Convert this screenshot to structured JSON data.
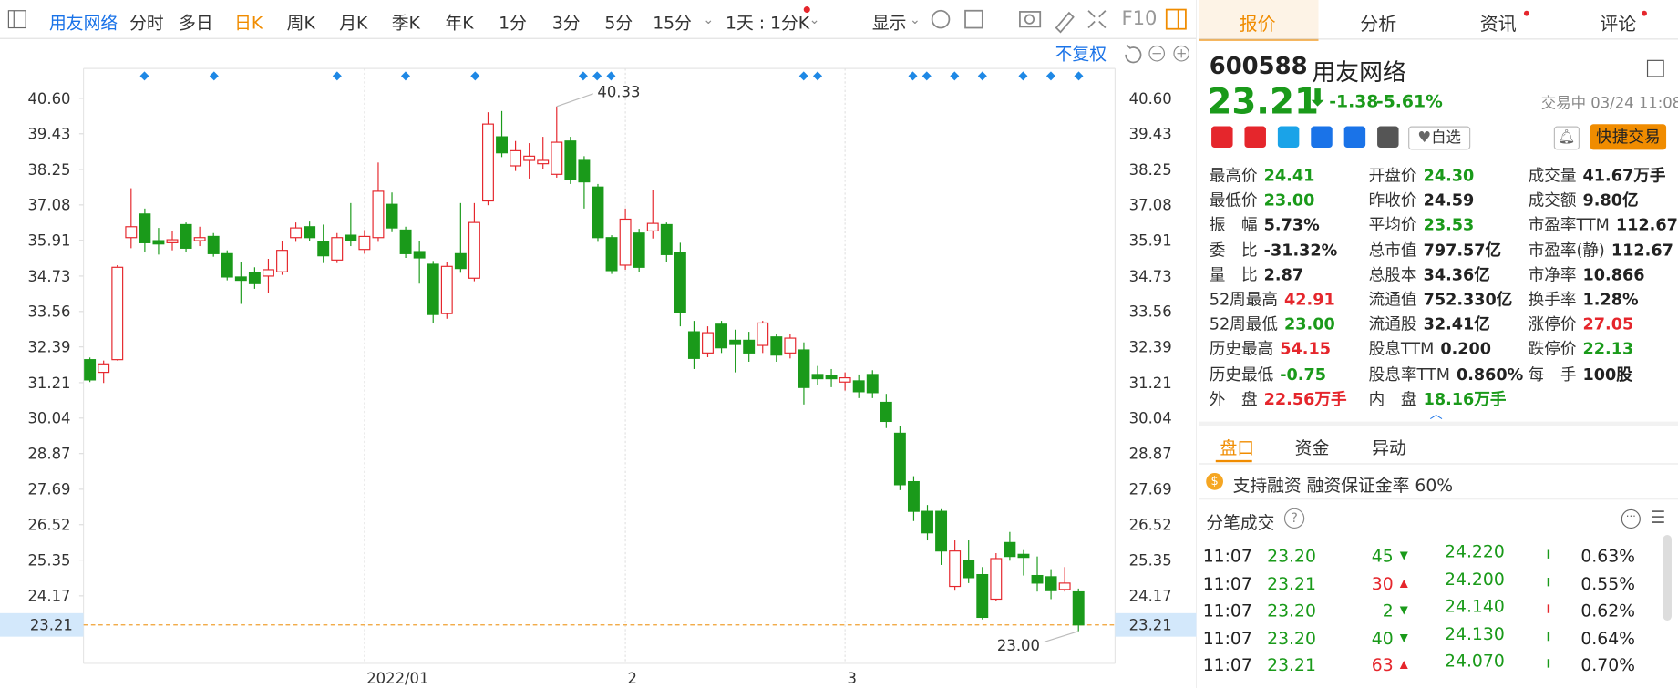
{
  "toolbar": {
    "stock": "用友网络",
    "periods": [
      "分时",
      "多日",
      "日K",
      "周K",
      "月K",
      "季K",
      "年K",
      "1分",
      "3分",
      "5分",
      "15分"
    ],
    "interval": "1天 : 1分K",
    "display": "显示",
    "f10": "F10"
  },
  "chart_controls": {
    "adjust": "不复权"
  },
  "chart_data": {
    "type": "candlestick",
    "categories": [
      null,
      null,
      null,
      null,
      null,
      null,
      null,
      null,
      null,
      null,
      null,
      null,
      null,
      null,
      null,
      null,
      null,
      null,
      null,
      null,
      "2022/01",
      null,
      null,
      null,
      null,
      null,
      null,
      null,
      null,
      null,
      null,
      null,
      null,
      null,
      null,
      null,
      null,
      null,
      null,
      "2",
      null,
      null,
      null,
      null,
      null,
      null,
      null,
      null,
      null,
      null,
      null,
      null,
      null,
      null,
      null,
      "3",
      null,
      null,
      null,
      null,
      null,
      null,
      null,
      null,
      null,
      null,
      null,
      null,
      null,
      null,
      null,
      null,
      null
    ],
    "candles": {
      "open": [
        31.97,
        31.55,
        31.97,
        36.0,
        36.78,
        35.9,
        35.83,
        36.43,
        35.9,
        36.04,
        35.47,
        34.7,
        34.84,
        34.73,
        34.87,
        36.0,
        36.36,
        35.86,
        35.26,
        36.08,
        35.61,
        36.0,
        37.1,
        36.25,
        35.54,
        35.12,
        33.49,
        35.47,
        34.66,
        37.21,
        39.33,
        38.37,
        38.55,
        38.44,
        38.09,
        39.19,
        38.55,
        37.67,
        36.0,
        35.09,
        36.15,
        36.22,
        36.43,
        35.51,
        32.89,
        32.19,
        33.14,
        32.61,
        32.61,
        32.44,
        32.72,
        32.19,
        32.29,
        31.48,
        31.44,
        31.23,
        31.27,
        31.48,
        30.56,
        29.54,
        27.94,
        26.96,
        26.96,
        24.48,
        25.33,
        24.87,
        24.06,
        25.93,
        25.54,
        24.84,
        24.8,
        24.38,
        24.3
      ],
      "high": [
        32.04,
        31.94,
        35.09,
        37.63,
        36.96,
        36.32,
        36.22,
        36.5,
        36.36,
        36.15,
        35.58,
        35.19,
        35.02,
        35.3,
        35.9,
        36.5,
        36.53,
        36.43,
        36.15,
        37.14,
        36.25,
        38.48,
        37.49,
        36.36,
        35.9,
        35.23,
        35.19,
        37.14,
        37.14,
        40.14,
        40.18,
        39.19,
        39.12,
        39.33,
        40.33,
        39.33,
        38.69,
        37.77,
        36.08,
        36.96,
        36.29,
        37.56,
        36.5,
        35.83,
        33.25,
        33.07,
        33.25,
        32.96,
        32.89,
        33.25,
        32.82,
        32.82,
        32.54,
        31.76,
        31.66,
        31.55,
        31.48,
        31.62,
        30.84,
        29.78,
        28.12,
        27.17,
        27.03,
        26.0,
        26.0,
        25.12,
        25.58,
        26.28,
        25.68,
        25.47,
        25.05,
        25.12,
        24.41
      ],
      "low": [
        31.23,
        31.2,
        31.94,
        35.65,
        35.51,
        35.44,
        35.58,
        35.51,
        35.72,
        35.37,
        34.59,
        33.81,
        34.31,
        34.17,
        34.77,
        35.86,
        35.9,
        35.16,
        35.16,
        35.72,
        35.47,
        35.86,
        36.18,
        35.33,
        34.48,
        33.18,
        33.32,
        34.84,
        34.56,
        37.07,
        38.66,
        38.2,
        37.95,
        38.27,
        37.98,
        37.77,
        36.96,
        35.86,
        34.8,
        34.94,
        34.87,
        35.97,
        35.19,
        33.07,
        31.66,
        32.05,
        32.19,
        31.55,
        31.9,
        32.19,
        31.9,
        32.01,
        30.49,
        31.13,
        31.06,
        30.95,
        30.7,
        30.7,
        29.71,
        27.66,
        26.64,
        26.0,
        25.19,
        24.34,
        24.59,
        23.39,
        23.99,
        25.33,
        24.84,
        24.31,
        24.06,
        24.31,
        23.0
      ],
      "close": [
        31.3,
        31.83,
        35.02,
        36.36,
        35.83,
        35.79,
        35.93,
        35.65,
        36.0,
        35.47,
        34.7,
        34.59,
        34.48,
        34.94,
        35.58,
        36.32,
        36.0,
        35.4,
        36.0,
        35.9,
        36.04,
        37.53,
        36.32,
        35.47,
        35.33,
        33.46,
        35.05,
        34.98,
        36.5,
        39.75,
        38.8,
        38.87,
        38.69,
        38.55,
        39.15,
        37.91,
        37.84,
        36.0,
        34.91,
        36.61,
        35.02,
        36.47,
        35.44,
        33.53,
        32.01,
        32.86,
        32.36,
        32.47,
        32.19,
        33.18,
        32.12,
        32.68,
        31.05,
        31.34,
        31.34,
        31.37,
        30.91,
        30.88,
        29.93,
        27.84,
        26.96,
        26.25,
        25.65,
        25.65,
        24.77,
        23.46,
        25.4,
        25.47,
        25.44,
        24.59,
        24.34,
        24.59,
        23.21
      ]
    },
    "up_color": "#e5262c",
    "down_color": "#1a9a1a",
    "ylim": [
      21.94,
      41.55
    ],
    "yticks": [
      {
        "value": 40.6,
        "label": "40.60"
      },
      39.43,
      38.25,
      37.08,
      35.91,
      34.73,
      33.56,
      32.39,
      31.21,
      30.04,
      28.87,
      27.69,
      26.52,
      25.35,
      24.17
    ],
    "current_price": 23.21,
    "high_label": "40.33",
    "low_label": "23.00"
  },
  "panel": {
    "tabs": [
      "报价",
      "分析",
      "资讯",
      "评论"
    ],
    "code": "600588",
    "name": "用友网络",
    "price": "23.21",
    "change": "-1.38",
    "change_pct": "-5.61%",
    "status": "交易中 03/24 11:08",
    "watch": "自选",
    "trade": "快捷交易",
    "quote": [
      [
        {
          "label": "最高价",
          "value": "24.41",
          "color": "green"
        },
        {
          "label": "开盘价",
          "value": "24.30",
          "color": "green"
        },
        {
          "label": "成交量",
          "value": "41.67万手",
          "color": "black"
        }
      ],
      [
        {
          "label": "最低价",
          "value": "23.00",
          "color": "green"
        },
        {
          "label": "昨收价",
          "value": "24.59",
          "color": "black"
        },
        {
          "label": "成交额",
          "value": "9.80亿",
          "color": "black"
        }
      ],
      [
        {
          "label": "振　幅",
          "value": "5.73%",
          "color": "black"
        },
        {
          "label": "平均价",
          "value": "23.53",
          "color": "green"
        },
        {
          "label": "市盈率TTM",
          "value": "112.67",
          "color": "black"
        }
      ],
      [
        {
          "label": "委　比",
          "value": "-31.32%",
          "color": "black"
        },
        {
          "label": "总市值",
          "value": "797.57亿",
          "color": "black"
        },
        {
          "label": "市盈率(静)",
          "value": "112.67",
          "color": "black"
        }
      ],
      [
        {
          "label": "量　比",
          "value": "2.87",
          "color": "black"
        },
        {
          "label": "总股本",
          "value": "34.36亿",
          "color": "black"
        },
        {
          "label": "市净率",
          "value": "10.866",
          "color": "black"
        }
      ],
      [
        {
          "label": "52周最高",
          "value": "42.91",
          "color": "red"
        },
        {
          "label": "流通值",
          "value": "752.330亿",
          "color": "black"
        },
        {
          "label": "换手率",
          "value": "1.28%",
          "color": "black"
        }
      ],
      [
        {
          "label": "52周最低",
          "value": "23.00",
          "color": "green"
        },
        {
          "label": "流通股",
          "value": "32.41亿",
          "color": "black"
        },
        {
          "label": "涨停价",
          "value": "27.05",
          "color": "red"
        }
      ],
      [
        {
          "label": "历史最高",
          "value": "54.15",
          "color": "red"
        },
        {
          "label": "股息TTM",
          "value": "0.200",
          "color": "black"
        },
        {
          "label": "跌停价",
          "value": "22.13",
          "color": "green"
        }
      ],
      [
        {
          "label": "历史最低",
          "value": "-0.75",
          "color": "green"
        },
        {
          "label": "股息率TTM",
          "value": "0.860%",
          "color": "black"
        },
        {
          "label": "每　手",
          "value": "100股",
          "color": "black"
        }
      ],
      [
        {
          "label": "外　盘",
          "value": "22.56万手",
          "color": "red"
        },
        {
          "label": "内　盘",
          "value": "18.16万手",
          "color": "green"
        }
      ]
    ],
    "sub_tabs": [
      "盘口",
      "资金",
      "异动"
    ],
    "margin": "支持融资 融资保证金率 60%",
    "trades_title": "分笔成交",
    "trades": [
      {
        "time": "11:07",
        "price": "23.20",
        "volume": "45",
        "side": "down",
        "level": "24.220",
        "ratio": "0.63%",
        "bar": "green"
      },
      {
        "time": "11:07",
        "price": "23.21",
        "volume": "30",
        "side": "up",
        "level": "24.200",
        "ratio": "0.55%",
        "bar": "green"
      },
      {
        "time": "11:07",
        "price": "23.20",
        "volume": "2",
        "side": "down",
        "level": "24.140",
        "ratio": "0.62%",
        "bar": "red"
      },
      {
        "time": "11:07",
        "price": "23.20",
        "volume": "40",
        "side": "down",
        "level": "24.130",
        "ratio": "0.64%",
        "bar": "green"
      },
      {
        "time": "11:07",
        "price": "23.21",
        "volume": "63",
        "side": "up",
        "level": "24.070",
        "ratio": "0.70%",
        "bar": "green"
      }
    ]
  }
}
